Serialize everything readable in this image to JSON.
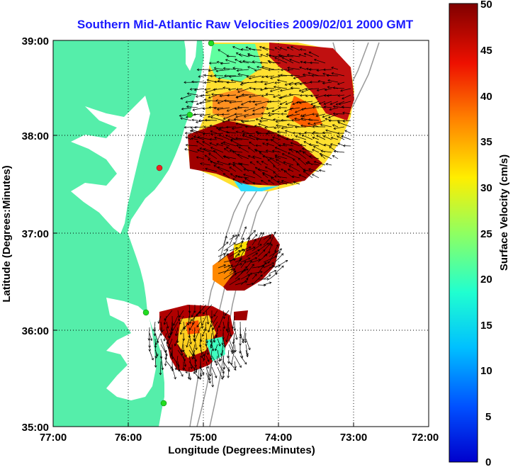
{
  "map": {
    "title": "Southern Mid-Atlantic Raw Velocities 2009/02/01 2000 GMT",
    "xlabel": "Longitude (Degrees:Minutes)",
    "ylabel": "Latitude (Degrees:Minutes)",
    "lon_range": [
      -77,
      -72
    ],
    "lat_range": [
      35,
      39
    ],
    "x_ticks": [
      "77:00",
      "76:00",
      "75:00",
      "74:00",
      "73:00",
      "72:00"
    ],
    "y_ticks": [
      "39:00",
      "38:00",
      "37:00",
      "36:00",
      "35:00"
    ],
    "grid": "dotted",
    "land_color": "#55eeaa",
    "ocean_color": "#ffffff",
    "isobath_color": "#999999",
    "station_color": "#22dd22",
    "station_alert_color": "#ee2222"
  },
  "colorbar": {
    "label": "Surface Velocity (cm/s)",
    "min": 0,
    "max": 50,
    "ticks": [
      "50",
      "45",
      "40",
      "35",
      "30",
      "25",
      "20",
      "15",
      "10",
      "5",
      "0"
    ],
    "colormap": "jet"
  }
}
